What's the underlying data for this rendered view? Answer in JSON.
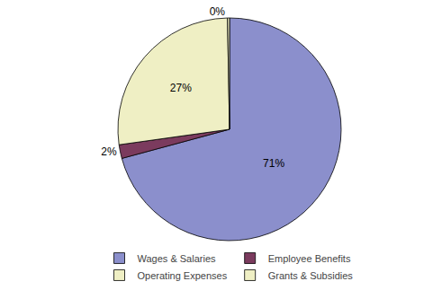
{
  "chart_data": {
    "type": "pie",
    "categories": [
      "Wages & Salaries",
      "Employee Benefits",
      "Operating Expenses",
      "Grants & Subsidies"
    ],
    "values": [
      71,
      2,
      27,
      0.3
    ],
    "value_labels": [
      "71%",
      "2%",
      "27%",
      "0%"
    ],
    "colors": [
      "#8b8fcc",
      "#7b3b5e",
      "#efefc4",
      "#efefc4"
    ],
    "data_labels": true,
    "legend": "bottom"
  }
}
